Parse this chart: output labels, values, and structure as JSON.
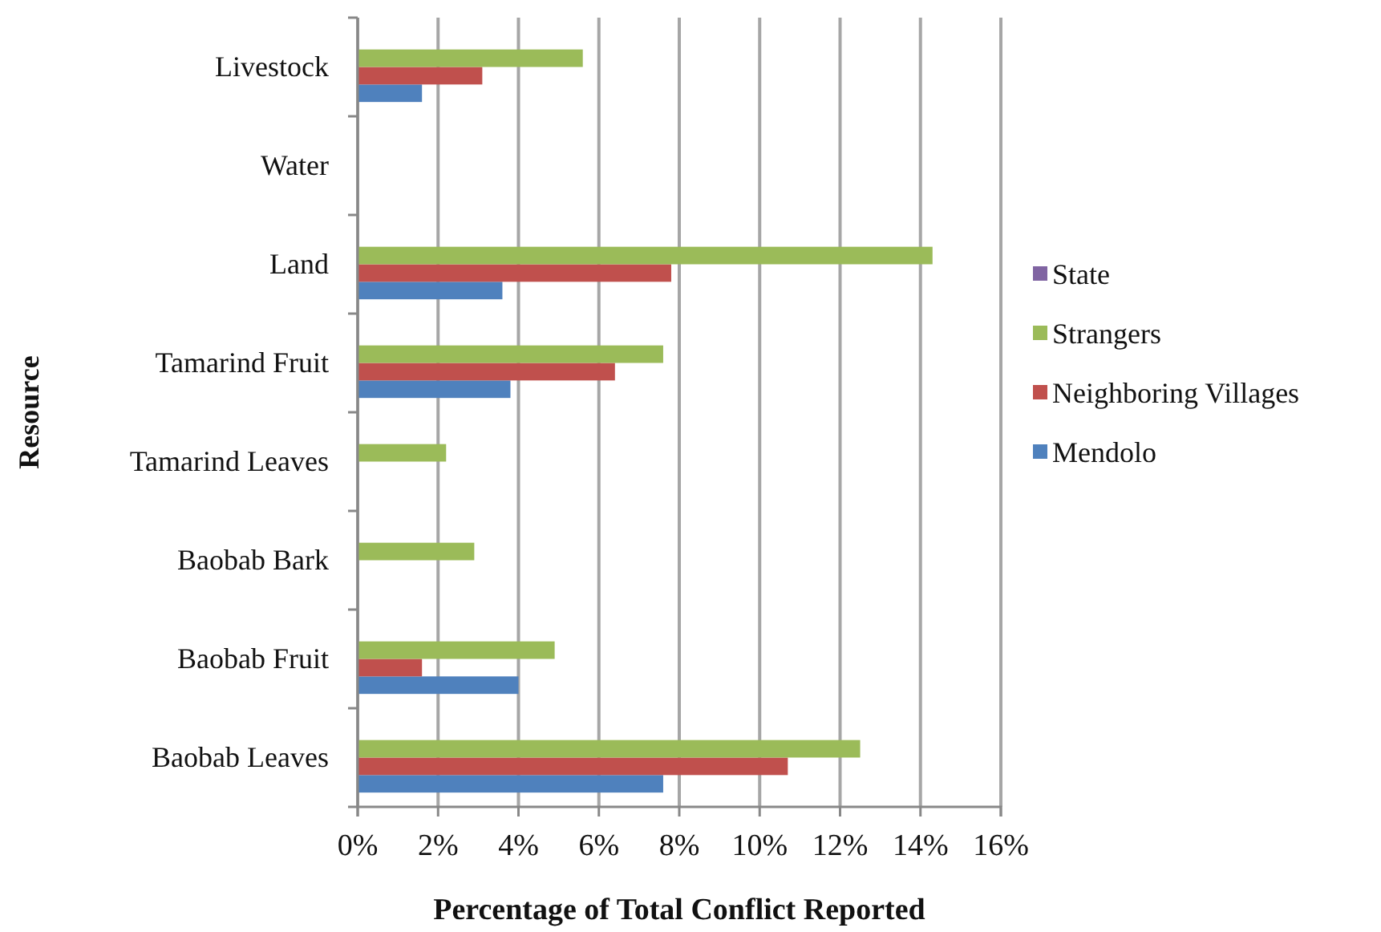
{
  "chart_data": {
    "type": "bar",
    "orientation": "horizontal",
    "xlabel": "Percentage of Total Conflict Reported",
    "ylabel": "Resource",
    "categories": [
      "Livestock",
      "Water",
      "Land",
      "Tamarind Fruit",
      "Tamarind Leaves",
      "Baobab Bark",
      "Baobab Fruit",
      "Baobab Leaves"
    ],
    "series": [
      {
        "name": "Mendolo",
        "color": "#4f81bd",
        "values": [
          1.6,
          0,
          3.6,
          3.8,
          0,
          0,
          4.0,
          7.6
        ]
      },
      {
        "name": "Neighboring Villages",
        "color": "#c0504d",
        "values": [
          3.1,
          0,
          7.8,
          6.4,
          0,
          0,
          1.6,
          10.7
        ]
      },
      {
        "name": "Strangers",
        "color": "#9bbb59",
        "values": [
          5.6,
          0,
          14.3,
          7.6,
          2.2,
          2.9,
          4.9,
          12.5
        ]
      },
      {
        "name": "State",
        "color": "#8064a2",
        "values": [
          0,
          0,
          0,
          0,
          0,
          0,
          0,
          0
        ]
      }
    ],
    "xlim": [
      0,
      16
    ],
    "xticks": [
      {
        "value": 0,
        "label": "0%"
      },
      {
        "value": 2,
        "label": "2%"
      },
      {
        "value": 4,
        "label": "4%"
      },
      {
        "value": 6,
        "label": "6%"
      },
      {
        "value": 8,
        "label": "8%"
      },
      {
        "value": 10,
        "label": "10%"
      },
      {
        "value": 12,
        "label": "12%"
      },
      {
        "value": 14,
        "label": "14%"
      },
      {
        "value": 16,
        "label": "16%"
      }
    ],
    "grid": "x",
    "legend": "right"
  }
}
